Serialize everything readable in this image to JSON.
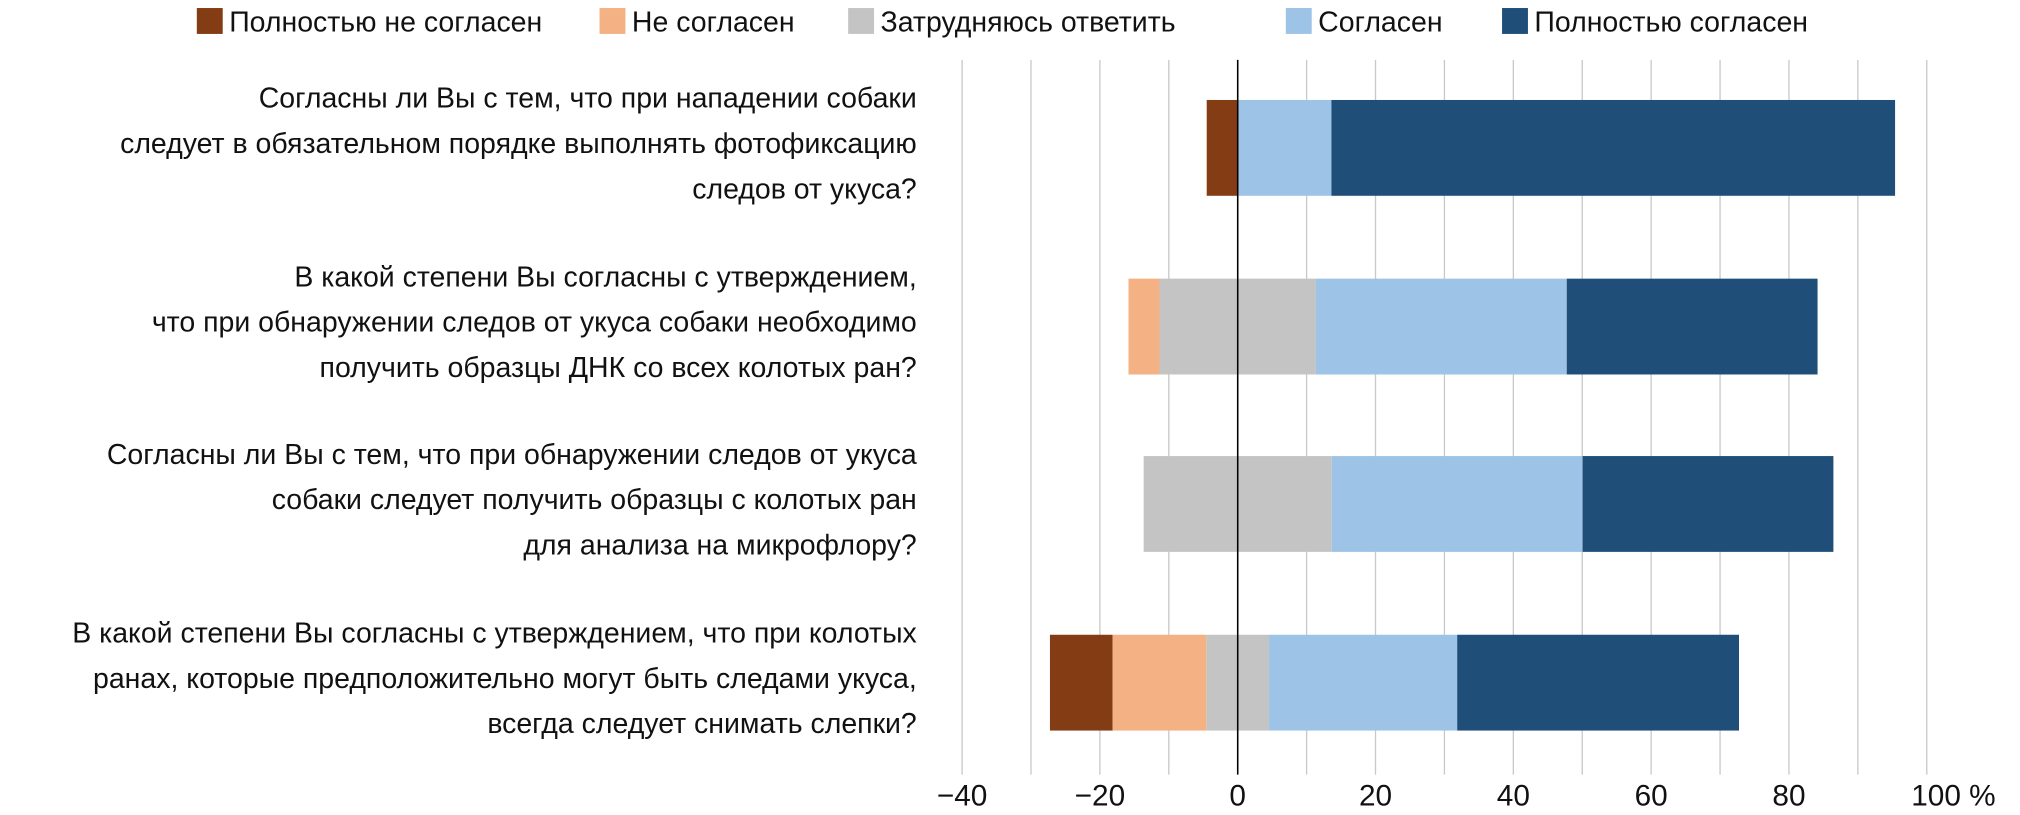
{
  "chart_data": {
    "type": "bar",
    "subtype": "diverging-stacked-horizontal",
    "title": "",
    "xlabel": "",
    "ylabel": "",
    "xlim": [
      -40,
      100
    ],
    "xticks": [
      -40,
      -20,
      0,
      20,
      40,
      60,
      80,
      100
    ],
    "xtick_labels": [
      "−40",
      "−20",
      "0",
      "20",
      "40",
      "60",
      "80",
      "100 %"
    ],
    "grid": true,
    "legend_position": "top",
    "series": [
      {
        "name": "Полностью не согласен",
        "color": "#843c14"
      },
      {
        "name": "Не согласен",
        "color": "#f4b183"
      },
      {
        "name": "Затрудняюсь ответить",
        "color": "#c4c4c4"
      },
      {
        "name": "Согласен",
        "color": "#9dc3e6"
      },
      {
        "name": "Полностью согласен",
        "color": "#1f4e79"
      }
    ],
    "categories": [
      {
        "lines": [
          "Согласны ли Вы с тем, что при нападении собаки",
          "следует в обязательном порядке выполнять фотофиксацию",
          "следов от укуса?"
        ],
        "values": [
          4.5,
          0,
          0,
          13.6,
          81.8
        ]
      },
      {
        "lines": [
          "В какой степени Вы согласны с утверждением,",
          "что при обнаружении следов от укуса собаки необходимо",
          "получить образцы ДНК со всех колотых ран?"
        ],
        "values": [
          0,
          4.5,
          22.7,
          36.4,
          36.4
        ]
      },
      {
        "lines": [
          "Согласны ли Вы с тем, что при обнаружении следов от укуса",
          "собаки следует получить образцы с колотых ран",
          "для анализа на микрофлору?"
        ],
        "values": [
          0,
          0,
          27.3,
          36.4,
          36.4
        ]
      },
      {
        "lines": [
          "В какой степени Вы согласны с утверждением, что при колотых",
          "ранах, которые предположительно могут быть следами укуса,",
          "всегда следует снимать слепки?"
        ],
        "values": [
          9.1,
          13.6,
          9.1,
          27.3,
          40.9
        ]
      }
    ]
  }
}
